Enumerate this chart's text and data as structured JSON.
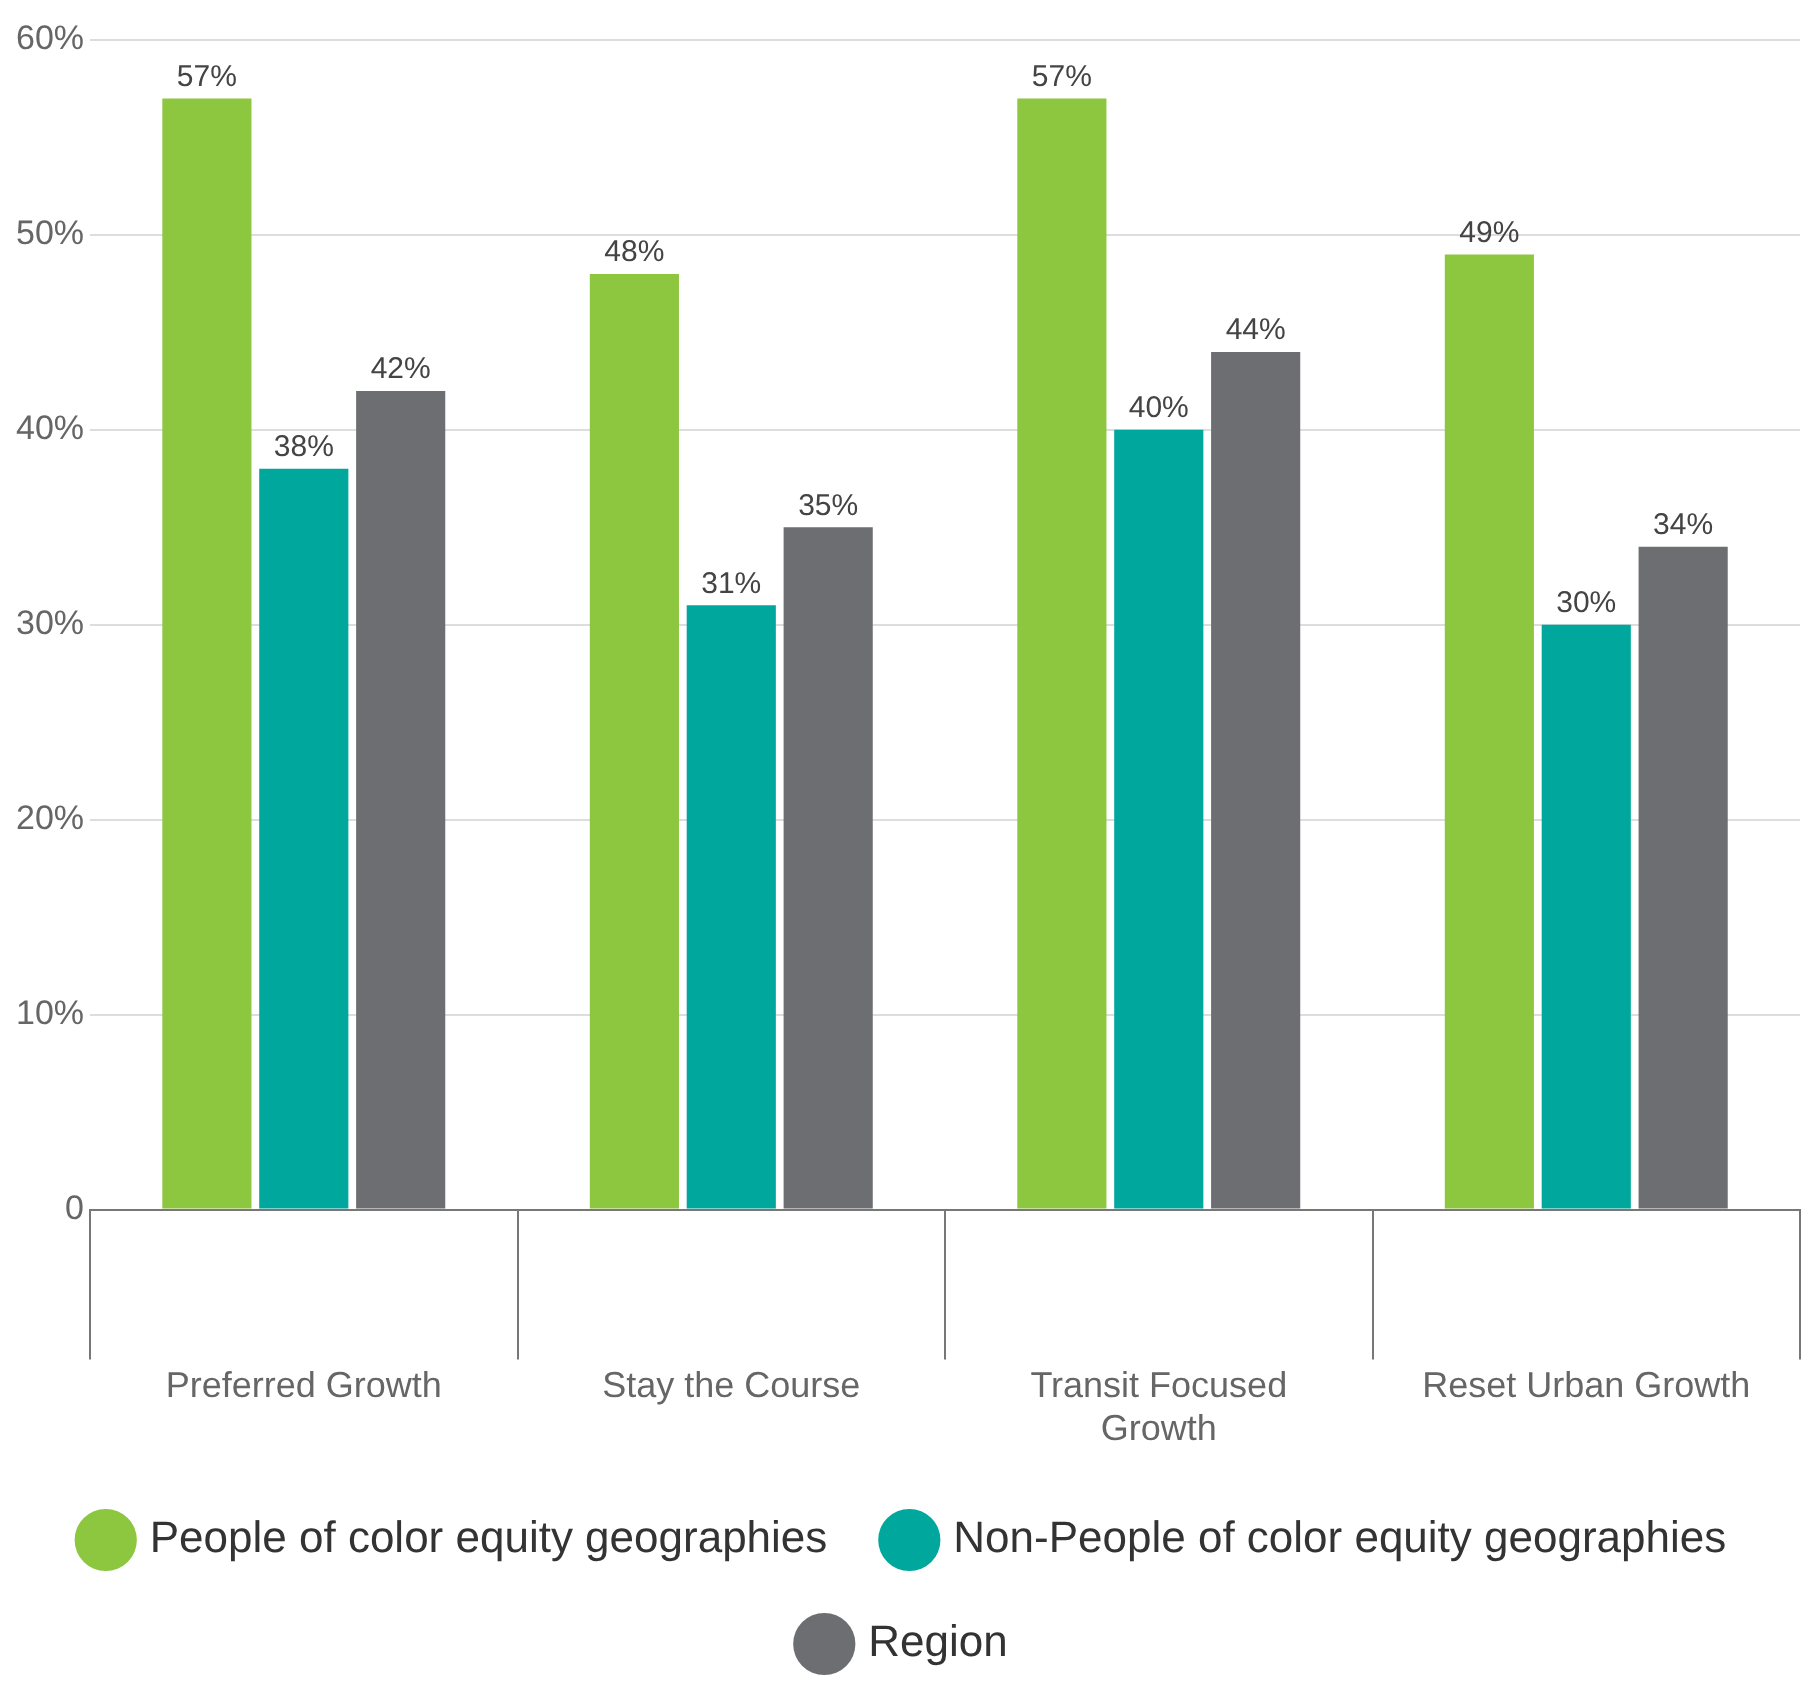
{
  "chart_data": {
    "type": "bar",
    "categories": [
      "Preferred Growth",
      "Stay the Course",
      "Transit Focused Growth",
      "Reset Urban Growth"
    ],
    "series": [
      {
        "name": "People of color equity geographies",
        "color": "#8dc63f",
        "values": [
          57,
          48,
          57,
          49
        ],
        "value_labels": [
          "57%",
          "48%",
          "57%",
          "49%"
        ]
      },
      {
        "name": "Non-People of color equity geographies",
        "color": "#00a79d",
        "values": [
          38,
          31,
          40,
          30
        ],
        "value_labels": [
          "38%",
          "31%",
          "40%",
          "30%"
        ]
      },
      {
        "name": "Region",
        "color": "#6d6e71",
        "values": [
          42,
          35,
          44,
          34
        ],
        "value_labels": [
          "42%",
          "35%",
          "44%",
          "34%"
        ]
      }
    ],
    "ylim": [
      0,
      60
    ],
    "yticks": [
      {
        "value": 0,
        "label": "0"
      },
      {
        "value": 10,
        "label": "10%"
      },
      {
        "value": 20,
        "label": "20%"
      },
      {
        "value": 30,
        "label": "30%"
      },
      {
        "value": 40,
        "label": "40%"
      },
      {
        "value": 50,
        "label": "50%"
      },
      {
        "value": 60,
        "label": "60%"
      }
    ],
    "grid": "y",
    "legend": "bottom"
  }
}
